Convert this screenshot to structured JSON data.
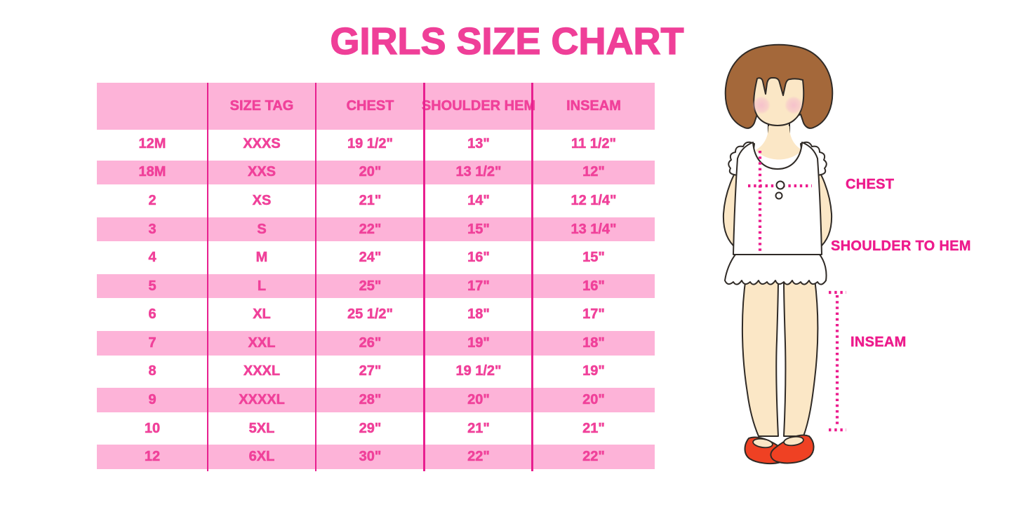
{
  "page_title": "GIRLS SIZE CHART",
  "colors": {
    "title_pink": "#EF3F98",
    "table_text_pink": "#F0419A",
    "row_band_pink": "#FDB3D8",
    "grid_line_magenta": "#E81F8F",
    "measure_line_magenta": "#EC1C8D",
    "label_magenta": "#ED1B8C",
    "hair_brown": "#A4683A",
    "skin": "#FBE7C6",
    "blush_pink": "#F5BFCC",
    "shoe_red": "#EF4123",
    "outline_dark": "#2F2A26"
  },
  "chart_data": {
    "type": "table",
    "title": "GIRLS SIZE CHART",
    "columns": [
      "",
      "SIZE TAG",
      "CHEST",
      "SHOULDER HEM",
      "INSEAM"
    ],
    "rows": [
      [
        "12M",
        "XXXS",
        "19 1/2\"",
        "13\"",
        "11 1/2\""
      ],
      [
        "18M",
        "XXS",
        "20\"",
        "13 1/2\"",
        "12\""
      ],
      [
        "2",
        "XS",
        "21\"",
        "14\"",
        "12 1/4\""
      ],
      [
        "3",
        "S",
        "22\"",
        "15\"",
        "13 1/4\""
      ],
      [
        "4",
        "M",
        "24\"",
        "16\"",
        "15\""
      ],
      [
        "5",
        "L",
        "25\"",
        "17\"",
        "16\""
      ],
      [
        "6",
        "XL",
        "25 1/2\"",
        "18\"",
        "17\""
      ],
      [
        "7",
        "XXL",
        "26\"",
        "19\"",
        "18\""
      ],
      [
        "8",
        "XXXL",
        "27\"",
        "19 1/2\"",
        "19\""
      ],
      [
        "9",
        "XXXXL",
        "28\"",
        "20\"",
        "20\""
      ],
      [
        "10",
        "5XL",
        "29\"",
        "21\"",
        "21\""
      ],
      [
        "12",
        "6XL",
        "30\"",
        "22\"",
        "22\""
      ]
    ],
    "layout": {
      "row_striping": "alternating white and pink bands, header band pink",
      "grid": "vertical magenta column separators only, no outer border"
    }
  },
  "figure": {
    "chest_label": "CHEST",
    "shoulder_to_hem_label": "SHOULDER TO HEM",
    "inseam_label": "INSEAM"
  }
}
